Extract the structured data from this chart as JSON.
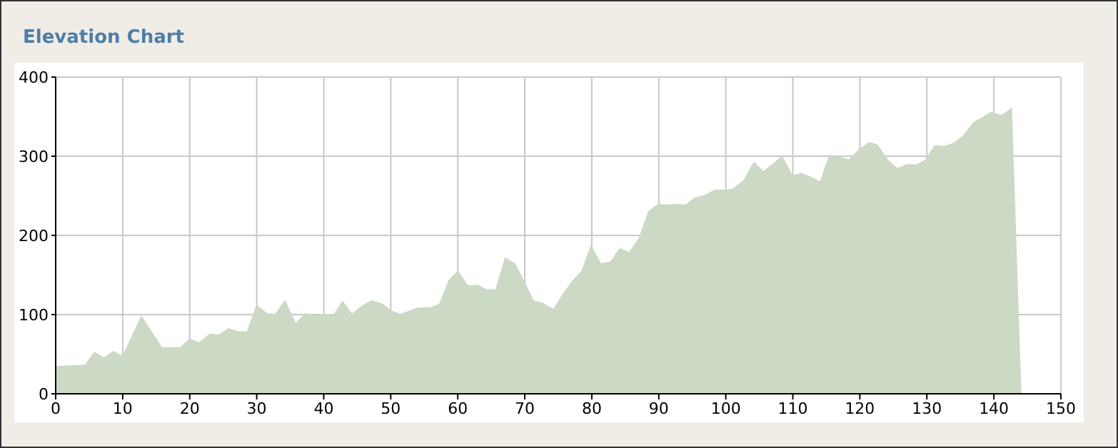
{
  "chart_data": {
    "type": "area",
    "title": "Elevation Chart",
    "x": [
      0,
      4.4,
      5.8,
      7.2,
      8.6,
      10,
      12.8,
      15.8,
      18.6,
      20,
      21.4,
      23,
      24.4,
      25.8,
      27.2,
      28.6,
      30,
      31.5,
      32.8,
      34.2,
      35.8,
      37.2,
      38.6,
      40,
      41.5,
      42.8,
      44.2,
      45.8,
      47.2,
      48.5,
      50.2,
      51.4,
      54.1,
      55.8,
      57.3,
      58.7,
      60,
      61.5,
      62.9,
      64.3,
      65.7,
      67.1,
      68.5,
      71.3,
      72.7,
      74.3,
      75.7,
      77.1,
      78.5,
      79.9,
      81.3,
      82.8,
      84.2,
      85.6,
      87.1,
      88.5,
      89.9,
      91.3,
      92.7,
      94,
      95.4,
      96.8,
      98.4,
      99.8,
      101,
      102.7,
      104.2,
      105.6,
      108.4,
      109.9,
      111.3,
      112.7,
      114.1,
      115.5,
      117,
      118.4,
      119.9,
      121.4,
      122.6,
      124.1,
      125.6,
      127,
      128.5,
      129.8,
      131.2,
      132.6,
      134,
      135.4,
      137,
      139.6,
      141.2,
      142.6,
      144
    ],
    "series": [
      {
        "color": "#ccd9c5",
        "values": [
          34,
          36,
          52,
          45,
          53,
          47,
          97,
          58,
          58,
          69,
          64,
          75,
          74,
          82,
          78,
          78,
          111,
          101,
          100,
          117,
          88,
          101,
          98,
          100,
          99,
          116,
          100,
          111,
          117,
          114,
          104,
          100,
          108,
          108,
          113,
          143,
          154,
          136,
          137,
          131,
          131,
          171,
          164,
          117,
          114,
          106,
          125,
          142,
          154,
          186,
          164,
          166,
          183,
          178,
          196,
          230,
          239,
          238,
          239,
          238,
          247,
          250,
          257,
          257,
          258,
          269,
          292,
          280,
          299,
          275,
          278,
          273,
          267,
          301,
          298,
          295,
          308,
          317,
          314,
          295,
          284,
          289,
          289,
          295,
          313,
          312,
          316,
          325,
          342,
          355,
          351,
          360,
          0
        ]
      }
    ],
    "xlim": [
      0,
      150
    ],
    "xticks": [
      0,
      10,
      20,
      30,
      40,
      50,
      60,
      70,
      80,
      90,
      100,
      110,
      120,
      130,
      140,
      150
    ],
    "ylim": [
      0,
      400
    ],
    "yticks": [
      0,
      100,
      200,
      300,
      400
    ],
    "grid": true
  }
}
